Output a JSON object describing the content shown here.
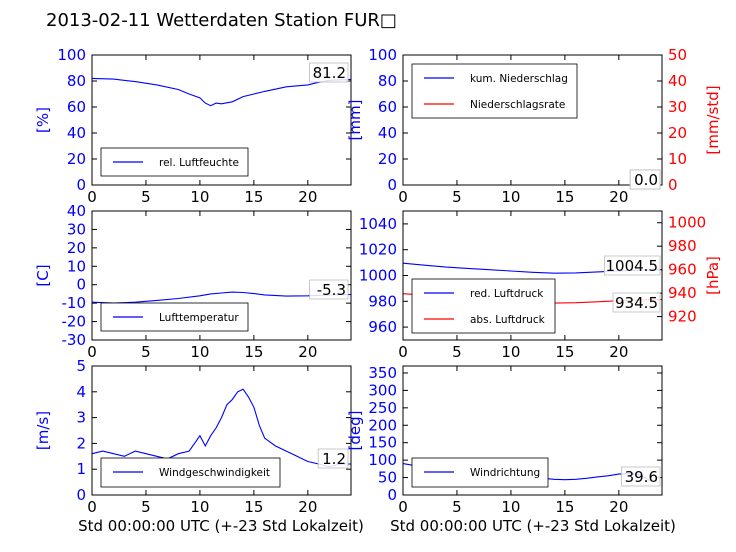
{
  "suptitle": "2013-02-11 Wetterdaten Station FUR□",
  "xlabel": "Std 00:00:00 UTC (+-23 Std Lokalzeit)",
  "colors": {
    "primary": "#0000ff",
    "secondary": "#ff0000",
    "frame": "#000000"
  },
  "chart_data": [
    {
      "type": "line",
      "ylabel": "[%]",
      "xlim": [
        0,
        24
      ],
      "ylim": [
        0,
        100
      ],
      "xticks": [
        0,
        5,
        10,
        15,
        20
      ],
      "yticks": [
        0,
        20,
        40,
        60,
        80,
        100
      ],
      "legend": {
        "position": "lower-left",
        "entries": [
          "rel. Luftfeuchte"
        ]
      },
      "value_label": "81.2",
      "series": [
        {
          "name": "rel. Luftfeuchte",
          "color": "#0000ff",
          "x": [
            0,
            2,
            4,
            6,
            8,
            9,
            10,
            10.5,
            11,
            11.5,
            12,
            13,
            14,
            15,
            16,
            18,
            20,
            21,
            22,
            24
          ],
          "y": [
            82,
            81.5,
            79.5,
            77,
            73.5,
            70,
            67,
            63,
            61,
            63,
            62.5,
            64,
            68,
            70,
            72,
            75.5,
            77,
            79,
            80.5,
            81.2
          ]
        }
      ]
    },
    {
      "type": "line",
      "ylabel": "[mm]",
      "ylabel2": "[mm/std]",
      "xlim": [
        0,
        24
      ],
      "ylim": [
        0,
        100
      ],
      "ylim2": [
        0,
        50
      ],
      "xticks": [
        0,
        5,
        10,
        15,
        20
      ],
      "yticks": [
        0,
        20,
        40,
        60,
        80,
        100
      ],
      "yticks2": [
        0,
        10,
        20,
        30,
        40,
        50
      ],
      "legend": {
        "position": "top-left",
        "entries": [
          "kum. Niederschlag",
          "Niederschlagsrate"
        ]
      },
      "value_label": "0.0",
      "value_label2": "0.0",
      "series": [
        {
          "name": "kum. Niederschlag",
          "color": "#0000ff",
          "x": [
            0,
            24
          ],
          "y": [
            0,
            0
          ]
        },
        {
          "name": "Niederschlagsrate",
          "color": "#ff0000",
          "axis": "right",
          "x": [
            0,
            24
          ],
          "y": [
            0,
            0
          ]
        }
      ]
    },
    {
      "type": "line",
      "ylabel": "[C]",
      "xlim": [
        0,
        24
      ],
      "ylim": [
        -30,
        40
      ],
      "xticks": [
        0,
        5,
        10,
        15,
        20
      ],
      "yticks": [
        -30,
        -20,
        -10,
        0,
        10,
        20,
        30,
        40
      ],
      "legend": {
        "position": "lower-left",
        "entries": [
          "Lufttemperatur"
        ]
      },
      "value_label": "-5.3",
      "series": [
        {
          "name": "Lufttemperatur",
          "color": "#0000ff",
          "x": [
            0,
            2,
            4,
            6,
            8,
            10,
            11,
            12,
            13,
            14,
            15,
            16,
            18,
            20,
            22,
            24
          ],
          "y": [
            -9.5,
            -10,
            -9.5,
            -8.5,
            -7.5,
            -6,
            -5,
            -4.5,
            -4,
            -4.2,
            -4.8,
            -5.5,
            -6.2,
            -6,
            -5.5,
            -5.3
          ]
        }
      ]
    },
    {
      "type": "line",
      "ylabel": "",
      "ylabel2": "[hPa]",
      "xlim": [
        0,
        24
      ],
      "ylim": [
        950,
        1050
      ],
      "ylim2": [
        900,
        1010
      ],
      "xticks": [
        0,
        5,
        10,
        15,
        20
      ],
      "yticks": [
        960,
        980,
        1000,
        1020,
        1040
      ],
      "yticks2": [
        920,
        940,
        960,
        980,
        1000
      ],
      "legend": {
        "position": "lower-left",
        "entries": [
          "red. Luftdruck",
          "abs. Luftdruck"
        ]
      },
      "value_label": "1004.5",
      "value_label2": "934.5",
      "series": [
        {
          "name": "red. Luftdruck",
          "color": "#0000ff",
          "x": [
            0,
            2,
            4,
            6,
            8,
            10,
            12,
            14,
            16,
            18,
            20,
            22,
            24
          ],
          "y": [
            1009.5,
            1008,
            1006.5,
            1005.5,
            1004.5,
            1003.5,
            1002.5,
            1001.8,
            1002,
            1002.8,
            1003.5,
            1004.2,
            1004.5
          ]
        },
        {
          "name": "abs. Luftdruck",
          "color": "#ff0000",
          "axis": "right",
          "x": [
            0,
            2,
            4,
            6,
            8,
            10,
            12,
            14,
            16,
            18,
            20,
            22,
            24
          ],
          "y": [
            939.5,
            938.2,
            936.8,
            935.5,
            934.5,
            933.2,
            932.5,
            931.5,
            931.8,
            932.6,
            933.5,
            934.2,
            934.5
          ]
        }
      ]
    },
    {
      "type": "line",
      "ylabel": "[m/s]",
      "xlim": [
        0,
        24
      ],
      "ylim": [
        0,
        5
      ],
      "xticks": [
        0,
        5,
        10,
        15,
        20
      ],
      "yticks": [
        0,
        1,
        2,
        3,
        4,
        5
      ],
      "legend": {
        "position": "lower-left",
        "entries": [
          "Windgeschwindigkeit"
        ]
      },
      "value_label": "1.2",
      "series": [
        {
          "name": "Windgeschwindigkeit",
          "color": "#0000ff",
          "x": [
            0,
            1,
            2,
            3,
            4,
            5,
            6,
            7,
            8,
            9,
            9.5,
            10,
            10.5,
            11,
            11.5,
            12,
            12.5,
            13,
            13.5,
            14,
            14.5,
            15,
            15.5,
            16,
            17,
            18,
            19,
            20,
            21,
            22,
            23,
            24
          ],
          "y": [
            1.6,
            1.7,
            1.6,
            1.5,
            1.7,
            1.6,
            1.5,
            1.4,
            1.6,
            1.7,
            2.0,
            2.3,
            1.9,
            2.3,
            2.6,
            3.0,
            3.5,
            3.7,
            4.0,
            4.1,
            3.8,
            3.4,
            2.7,
            2.2,
            1.9,
            1.7,
            1.5,
            1.3,
            1.2,
            1.1,
            1.2,
            1.2
          ]
        }
      ]
    },
    {
      "type": "line",
      "ylabel": "[deg]",
      "xlim": [
        0,
        24
      ],
      "ylim": [
        0,
        370
      ],
      "xticks": [
        0,
        5,
        10,
        15,
        20
      ],
      "yticks": [
        0,
        50,
        100,
        150,
        200,
        250,
        300,
        350
      ],
      "legend": {
        "position": "lower-left",
        "entries": [
          "Windrichtung"
        ]
      },
      "value_label": "39.6",
      "series": [
        {
          "name": "Windrichtung",
          "color": "#0000ff",
          "x": [
            0,
            1,
            2,
            3,
            4,
            5,
            6,
            7,
            8,
            9,
            10,
            11,
            12,
            13,
            14,
            15,
            16,
            17,
            18,
            19,
            20,
            21,
            22,
            23
          ],
          "y": [
            90,
            85,
            82,
            80,
            85,
            80,
            82,
            78,
            80,
            75,
            65,
            55,
            50,
            48,
            45,
            44,
            45,
            48,
            52,
            55,
            60,
            62,
            58,
            39.6
          ]
        }
      ]
    }
  ]
}
